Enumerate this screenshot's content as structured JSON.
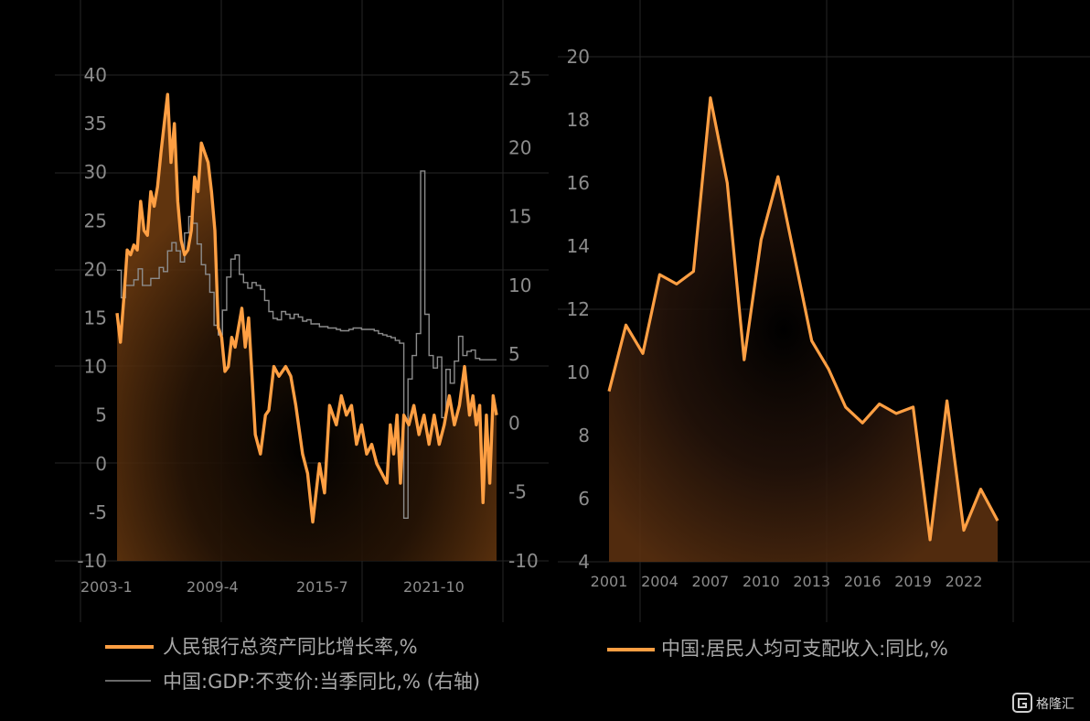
{
  "colors": {
    "background": "#000000",
    "orange": "#ff9f43",
    "gray_line": "#8c8c8c",
    "grid": "#262626",
    "tick_text": "#8c8c8c"
  },
  "watermark": {
    "icon": "logo-g-icon",
    "text": "格隆汇"
  },
  "chart_data": [
    {
      "type": "line",
      "title": "",
      "x_tick_labels": [
        "2003-1",
        "2009-4",
        "2015-7",
        "2021-10"
      ],
      "x_range": [
        "2003-01",
        "2024-09"
      ],
      "grid": true,
      "y_left": {
        "ticks": [
          "40",
          "35",
          "30",
          "25",
          "20",
          "15",
          "10",
          "5",
          "0",
          "-5",
          "-10"
        ],
        "range": [
          -10,
          40
        ]
      },
      "y_right": {
        "ticks": [
          "25",
          "20",
          "15",
          "10",
          "5",
          "0",
          "-5",
          "-10"
        ],
        "range": [
          -10,
          25
        ]
      },
      "legend": [
        {
          "label": "人民银行总资产同比增长率,%",
          "style": "thick-orange"
        },
        {
          "label": "中国:GDP:不变价:当季同比,% (右轴)",
          "style": "thin-gray"
        }
      ],
      "series": [
        {
          "name": "人民银行总资产同比增长率,%",
          "axis": "left",
          "x": [
            2003.0,
            2003.2,
            2003.4,
            2003.6,
            2003.8,
            2004.0,
            2004.2,
            2004.4,
            2004.6,
            2004.8,
            2005.0,
            2005.2,
            2005.4,
            2005.6,
            2005.8,
            2006.0,
            2006.2,
            2006.4,
            2006.6,
            2006.8,
            2007.0,
            2007.2,
            2007.4,
            2007.6,
            2007.8,
            2008.0,
            2008.2,
            2008.4,
            2008.6,
            2008.8,
            2009.0,
            2009.2,
            2009.4,
            2009.6,
            2009.8,
            2010.0,
            2010.2,
            2010.4,
            2010.6,
            2010.8,
            2011.0,
            2011.2,
            2011.5,
            2011.8,
            2012.0,
            2012.3,
            2012.6,
            2013.0,
            2013.3,
            2013.6,
            2014.0,
            2014.3,
            2014.6,
            2015.0,
            2015.3,
            2015.6,
            2016.0,
            2016.3,
            2016.6,
            2016.9,
            2017.2,
            2017.5,
            2017.8,
            2018.1,
            2018.4,
            2018.7,
            2019.0,
            2019.2,
            2019.4,
            2019.6,
            2019.8,
            2020.0,
            2020.3,
            2020.6,
            2020.9,
            2021.2,
            2021.5,
            2021.8,
            2022.1,
            2022.4,
            2022.7,
            2023.0,
            2023.3,
            2023.6,
            2023.9,
            2024.1,
            2024.3,
            2024.5,
            2024.7,
            2024.9,
            2025.1,
            2025.3,
            2025.5
          ],
          "y": [
            15.5,
            12.5,
            17,
            22,
            21.5,
            22.5,
            22,
            27,
            24,
            23.5,
            28,
            26.5,
            28.5,
            32,
            35,
            38,
            31,
            35,
            27,
            23,
            21.5,
            22,
            24,
            29.5,
            28,
            33,
            32,
            31,
            28,
            24,
            14,
            13,
            9.5,
            10,
            13,
            12,
            14,
            16,
            12,
            15,
            9,
            3,
            1,
            5,
            5.5,
            10,
            9,
            10,
            9,
            6,
            1,
            -1,
            -6,
            0,
            -3,
            6,
            4,
            7,
            5,
            6,
            2,
            4,
            1,
            2,
            0,
            -1,
            -2,
            4,
            1,
            5,
            -2,
            5,
            4,
            6,
            3,
            5,
            2,
            5,
            2,
            4,
            7,
            4,
            6,
            10,
            5,
            7,
            4,
            6,
            -4,
            5,
            -2,
            7,
            5
          ]
        },
        {
          "name": "中国:GDP:不变价:当季同比,% (右轴)",
          "axis": "right",
          "x": [
            2003.0,
            2003.25,
            2003.5,
            2003.75,
            2004.0,
            2004.25,
            2004.5,
            2004.75,
            2005.0,
            2005.25,
            2005.5,
            2005.75,
            2006.0,
            2006.25,
            2006.5,
            2006.75,
            2007.0,
            2007.25,
            2007.5,
            2007.75,
            2008.0,
            2008.25,
            2008.5,
            2008.75,
            2009.0,
            2009.25,
            2009.5,
            2009.75,
            2010.0,
            2010.25,
            2010.5,
            2010.75,
            2011.0,
            2011.25,
            2011.5,
            2011.75,
            2012.0,
            2012.25,
            2012.5,
            2012.75,
            2013.0,
            2013.25,
            2013.5,
            2013.75,
            2014.0,
            2014.25,
            2014.5,
            2014.75,
            2015.0,
            2015.25,
            2015.5,
            2015.75,
            2016.0,
            2016.25,
            2016.5,
            2016.75,
            2017.0,
            2017.25,
            2017.5,
            2017.75,
            2018.0,
            2018.25,
            2018.5,
            2018.75,
            2019.0,
            2019.25,
            2019.5,
            2019.75,
            2020.0,
            2020.25,
            2020.5,
            2020.75,
            2021.0,
            2021.25,
            2021.5,
            2021.75,
            2022.0,
            2022.25,
            2022.5,
            2022.75,
            2023.0,
            2023.25,
            2023.5,
            2023.75,
            2024.0,
            2024.25,
            2024.5
          ],
          "y": [
            11.1,
            9.1,
            10.0,
            10.0,
            10.4,
            11.2,
            10.0,
            10.0,
            10.5,
            10.5,
            11.3,
            11.0,
            12.5,
            13.1,
            12.5,
            11.7,
            13.8,
            15.0,
            14.5,
            13.0,
            11.5,
            10.8,
            9.5,
            7.1,
            6.4,
            8.2,
            10.6,
            11.9,
            12.2,
            10.8,
            10.2,
            9.8,
            10.2,
            10.0,
            9.7,
            8.9,
            8.1,
            7.6,
            7.5,
            8.1,
            7.9,
            7.6,
            7.9,
            7.7,
            7.4,
            7.5,
            7.2,
            7.2,
            7.0,
            7.0,
            6.9,
            6.9,
            6.8,
            6.7,
            6.7,
            6.8,
            6.9,
            6.9,
            6.8,
            6.8,
            6.8,
            6.7,
            6.5,
            6.4,
            6.3,
            6.2,
            6.0,
            5.8,
            -6.9,
            3.2,
            4.9,
            6.5,
            18.3,
            7.9,
            4.9,
            4.0,
            4.8,
            0.4,
            3.9,
            2.9,
            4.5,
            6.3,
            4.9,
            5.2,
            5.3,
            4.7,
            4.6
          ]
        }
      ]
    },
    {
      "type": "area",
      "title": "",
      "x_tick_labels": [
        "2001",
        "2004",
        "2007",
        "2010",
        "2013",
        "2016",
        "2019",
        "2022"
      ],
      "x_range": [
        2001,
        2023
      ],
      "grid": true,
      "y_left": {
        "ticks": [
          "20",
          "18",
          "16",
          "14",
          "12",
          "10",
          "8",
          "6",
          "4"
        ],
        "range": [
          4,
          20
        ]
      },
      "legend": [
        {
          "label": "中国:居民人均可支配收入:同比,%",
          "style": "thick-orange"
        }
      ],
      "series": [
        {
          "name": "中国:居民人均可支配收入:同比,%",
          "x": [
            2001,
            2002,
            2003,
            2004,
            2005,
            2006,
            2007,
            2008,
            2009,
            2010,
            2011,
            2012,
            2013,
            2014,
            2015,
            2016,
            2017,
            2018,
            2019,
            2020,
            2021,
            2022,
            2023,
            2024
          ],
          "y": [
            9.4,
            11.5,
            10.6,
            13.1,
            12.8,
            13.2,
            18.7,
            16.0,
            10.4,
            14.2,
            16.2,
            13.6,
            11.0,
            10.1,
            8.9,
            8.4,
            9.0,
            8.7,
            8.9,
            4.7,
            9.1,
            5.0,
            6.3,
            5.3
          ]
        }
      ]
    }
  ]
}
